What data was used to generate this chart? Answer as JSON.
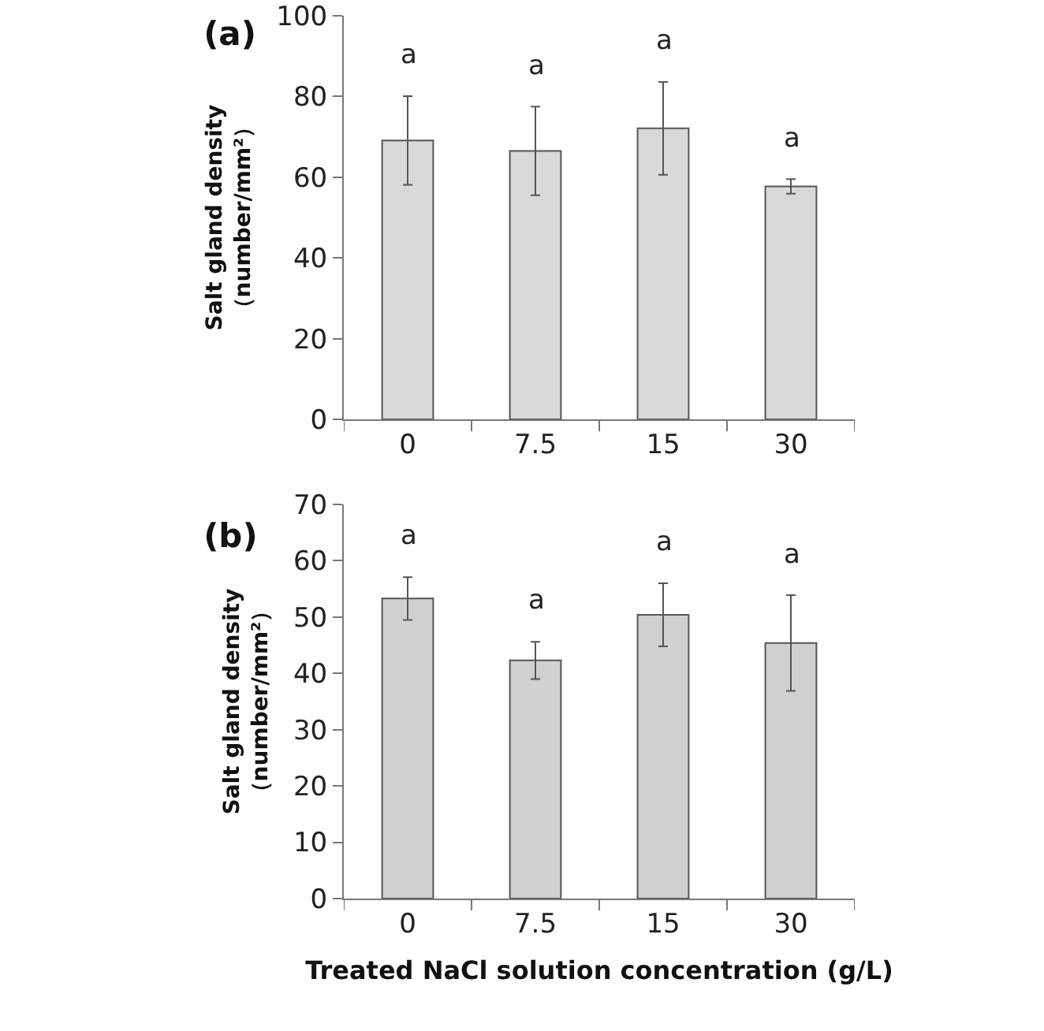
{
  "chart_data": [
    {
      "type": "bar",
      "title": "(a)",
      "ylabel": "Salt gland density\n（number/mm²）",
      "categories": [
        "0",
        "7.5",
        "15",
        "30"
      ],
      "values": [
        69.1,
        66.5,
        72.1,
        57.7
      ],
      "errors": [
        11,
        11,
        11.5,
        1.8
      ],
      "color": "#d9d9d9",
      "ylim": [
        0,
        100
      ],
      "yticks": [
        0,
        20,
        40,
        60,
        80,
        100
      ],
      "grid": false,
      "annotations": [
        "a",
        "a",
        "a",
        "a"
      ]
    },
    {
      "type": "bar",
      "title": "(b)",
      "ylabel": "Salt gland density\n（number/mm²）",
      "xlabel": "Treated NaCl solution concentration (g/L)",
      "categories": [
        "0",
        "7.5",
        "15",
        "30"
      ],
      "values": [
        53.3,
        42.3,
        50.4,
        45.4
      ],
      "errors": [
        3.8,
        3.3,
        5.6,
        8.5
      ],
      "color": "#d0d0d0",
      "ylim": [
        0,
        70
      ],
      "yticks": [
        0,
        10,
        20,
        30,
        40,
        50,
        60,
        70
      ],
      "grid": false,
      "annotations": [
        "a",
        "a",
        "a",
        "a"
      ]
    }
  ]
}
